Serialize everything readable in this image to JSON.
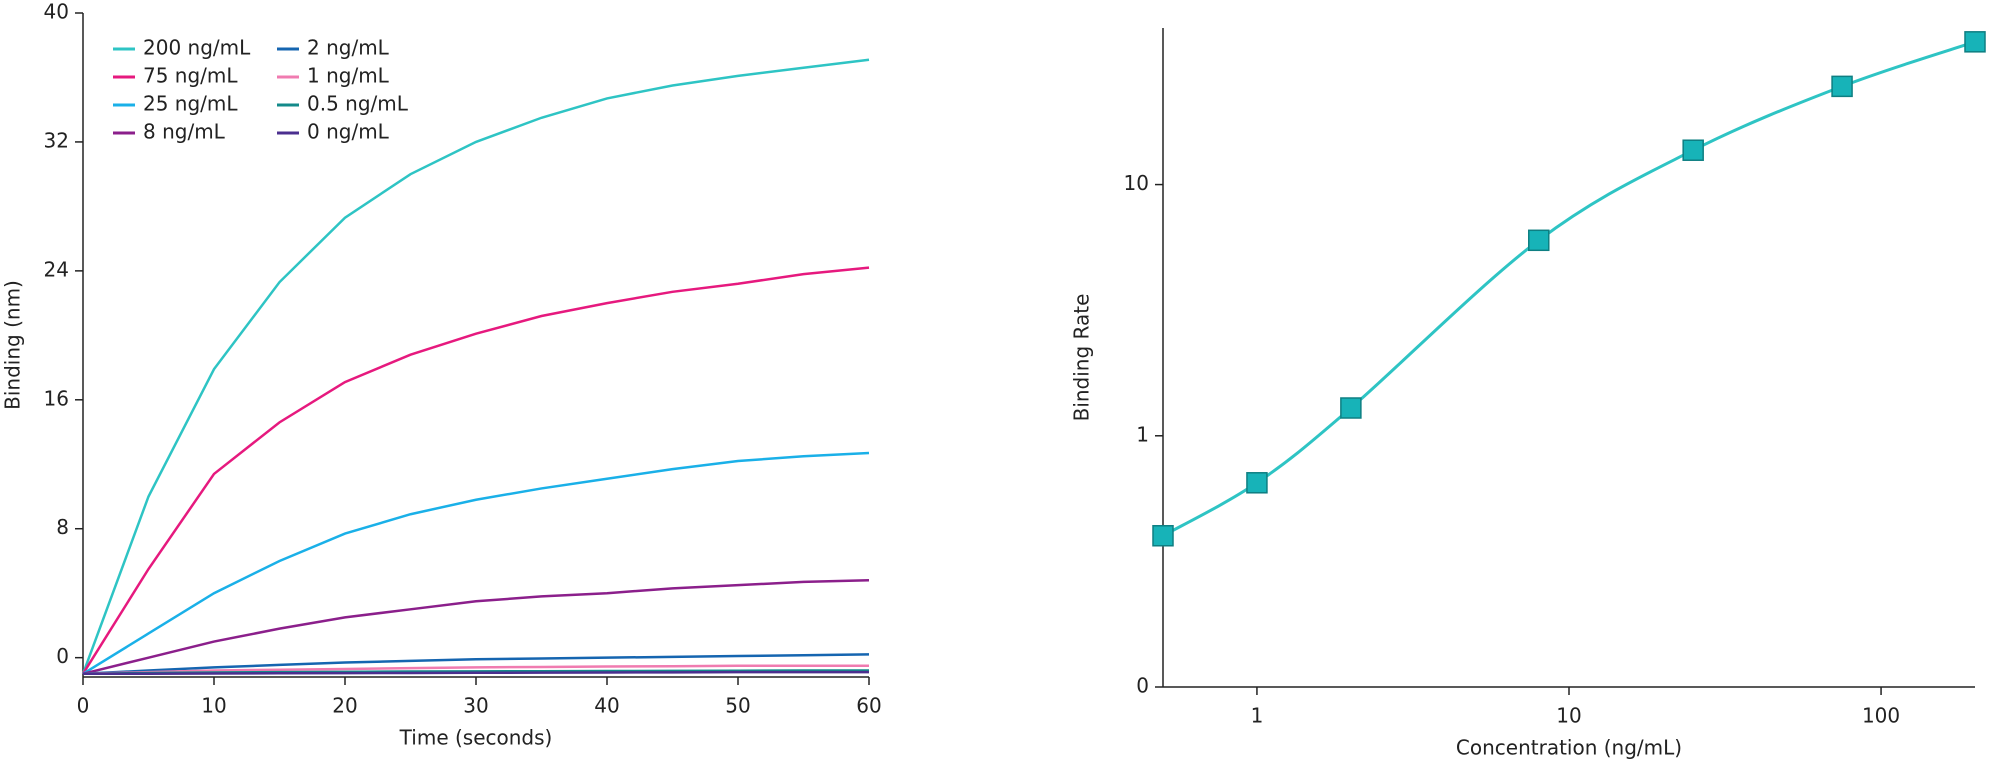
{
  "chart_data": [
    {
      "type": "line",
      "xlabel": "Time (seconds)",
      "ylabel": "Binding (nm)",
      "x": [
        0,
        5,
        10,
        15,
        20,
        25,
        30,
        35,
        40,
        45,
        50,
        55,
        60
      ],
      "xlim": [
        0,
        60
      ],
      "xticks": [
        0,
        10,
        20,
        30,
        40,
        50,
        60
      ],
      "ylim": [
        -1.2,
        40
      ],
      "yticks": [
        0,
        8,
        16,
        24,
        32,
        40
      ],
      "legend": "upper left",
      "series": [
        {
          "name": "200 ng/mL",
          "color": "#2ec4c4",
          "values": [
            -1,
            10,
            17.9,
            23.3,
            27.3,
            30,
            32,
            33.5,
            34.7,
            35.5,
            36.1,
            36.6,
            37.1
          ]
        },
        {
          "name": "75 ng/mL",
          "color": "#e6197e",
          "values": [
            -1,
            5.5,
            11.4,
            14.6,
            17.1,
            18.8,
            20.1,
            21.2,
            22,
            22.7,
            23.2,
            23.8,
            24.2
          ]
        },
        {
          "name": "25 ng/mL",
          "color": "#1ab0e8",
          "values": [
            -1,
            1.5,
            4,
            6,
            7.7,
            8.9,
            9.8,
            10.5,
            11.1,
            11.7,
            12.2,
            12.5,
            12.7
          ]
        },
        {
          "name": "8 ng/mL",
          "color": "#8b1f8b",
          "values": [
            -1,
            0,
            1,
            1.8,
            2.5,
            3,
            3.5,
            3.8,
            4,
            4.3,
            4.5,
            4.7,
            4.8
          ]
        },
        {
          "name": "2 ng/mL",
          "color": "#1565b0",
          "values": [
            -1,
            -0.8,
            -0.6,
            -0.45,
            -0.3,
            -0.2,
            -0.1,
            -0.05,
            0,
            0.05,
            0.1,
            0.15,
            0.2
          ]
        },
        {
          "name": "1 ng/mL",
          "color": "#f07bb0",
          "values": [
            -1,
            -0.9,
            -0.8,
            -0.75,
            -0.7,
            -0.65,
            -0.6,
            -0.58,
            -0.55,
            -0.53,
            -0.5,
            -0.5,
            -0.5
          ]
        },
        {
          "name": "0.5 ng/mL",
          "color": "#138a8a",
          "values": [
            -1,
            -0.95,
            -0.92,
            -0.9,
            -0.88,
            -0.86,
            -0.85,
            -0.84,
            -0.83,
            -0.82,
            -0.81,
            -0.8,
            -0.8
          ]
        },
        {
          "name": "0 ng/mL",
          "color": "#4b2f8f",
          "values": [
            -1,
            -1,
            -0.98,
            -0.97,
            -0.96,
            -0.95,
            -0.94,
            -0.93,
            -0.92,
            -0.91,
            -0.9,
            -0.9,
            -0.9
          ]
        }
      ]
    },
    {
      "type": "scatter",
      "xlabel": "Concentration (ng/mL)",
      "ylabel": "Binding Rate",
      "x": [
        0.5,
        1,
        2,
        8,
        25,
        75,
        200
      ],
      "values": [
        0.4,
        0.65,
        1.29,
        6.0,
        13.7,
        24.6,
        37
      ],
      "color": "#17b3b8",
      "line_color": "#2ec4c4",
      "line": true,
      "xscale": "log",
      "yscale": "log",
      "xlim": [
        0.5,
        200
      ],
      "xticks": [
        1,
        10,
        100
      ],
      "ylim": [
        0.1,
        42
      ],
      "yticks": [
        {
          "value": 0.1,
          "label": "0"
        },
        1,
        10
      ]
    }
  ]
}
